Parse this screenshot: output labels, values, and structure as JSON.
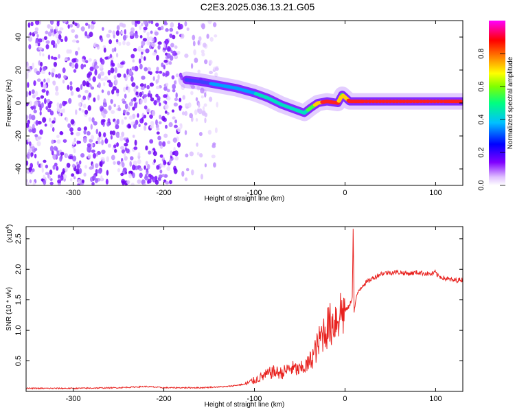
{
  "page": {
    "title": "C2E3.2025.036.13.21.G05"
  },
  "chart_data": [
    {
      "type": "heatmap",
      "title": "C2E3.2025.036.13.21.G05",
      "xlabel": "Height of straight line (km)",
      "ylabel": "Frequency (Hz)",
      "xlim": [
        -352,
        130
      ],
      "ylim": [
        -50,
        50
      ],
      "x_ticks": [
        -300,
        -200,
        -100,
        0,
        100
      ],
      "y_ticks": [
        -40,
        -20,
        0,
        20,
        40
      ],
      "colorbar": {
        "label": "Normalized spectral amplitude",
        "range": [
          0.0,
          1.0
        ],
        "ticks": [
          "0.0",
          "0.2",
          "0.4",
          "0.6",
          "0.8"
        ],
        "colors": [
          "#ffffff",
          "#c080ff",
          "#8000ff",
          "#0000ff",
          "#00c0ff",
          "#00ff80",
          "#80ff00",
          "#ffff00",
          "#ff8000",
          "#ff0000",
          "#ff00ff"
        ]
      },
      "signal_track": {
        "x": [
          -175,
          -160,
          -140,
          -120,
          -100,
          -85,
          -70,
          -55,
          -45,
          -38,
          -30,
          -20,
          -8,
          -3,
          5,
          20,
          50,
          80,
          110,
          130
        ],
        "frequency": [
          14,
          13,
          11,
          9,
          6,
          3,
          -1,
          -4,
          -6,
          -3,
          0,
          1,
          0,
          5,
          1,
          1,
          1,
          1,
          1,
          1
        ],
        "amplitude": [
          0.25,
          0.3,
          0.4,
          0.45,
          0.45,
          0.5,
          0.5,
          0.55,
          0.5,
          0.6,
          0.8,
          0.9,
          0.9,
          0.7,
          0.9,
          0.9,
          0.9,
          0.9,
          0.9,
          0.9
        ]
      }
    },
    {
      "type": "line",
      "xlabel": "Height of straight line (km)",
      "ylabel": "SNR (10 * v/v)",
      "y_multiplier": "(x10",
      "y_multiplier_exponent": "4",
      "y_multiplier_close": ")",
      "xlim": [
        -352,
        130
      ],
      "ylim": [
        0,
        2.7
      ],
      "x_ticks": [
        -300,
        -200,
        -100,
        0,
        100
      ],
      "y_ticks": [
        0.5,
        1.0,
        1.5,
        2.0,
        2.5
      ],
      "color": "#e8211e",
      "series": [
        {
          "x": [
            -352,
            -300,
            -250,
            -220,
            -200,
            -160,
            -130,
            -110,
            -100,
            -90,
            -80,
            -70,
            -60,
            -50,
            -40,
            -30,
            -25,
            -20,
            -15,
            -10,
            -5,
            0,
            5,
            8,
            9,
            10,
            12,
            15,
            20,
            30,
            40,
            50,
            60,
            70,
            80,
            90,
            95,
            100,
            102,
            110,
            120,
            130
          ],
          "values": [
            0.05,
            0.05,
            0.06,
            0.08,
            0.06,
            0.06,
            0.08,
            0.12,
            0.18,
            0.25,
            0.32,
            0.3,
            0.38,
            0.35,
            0.45,
            0.75,
            0.95,
            1.05,
            1.1,
            1.2,
            1.3,
            1.32,
            1.4,
            1.55,
            2.7,
            1.3,
            1.5,
            1.65,
            1.75,
            1.85,
            1.93,
            1.95,
            1.95,
            1.93,
            1.95,
            1.93,
            1.92,
            1.95,
            1.9,
            1.85,
            1.82,
            1.83
          ]
        }
      ]
    }
  ]
}
